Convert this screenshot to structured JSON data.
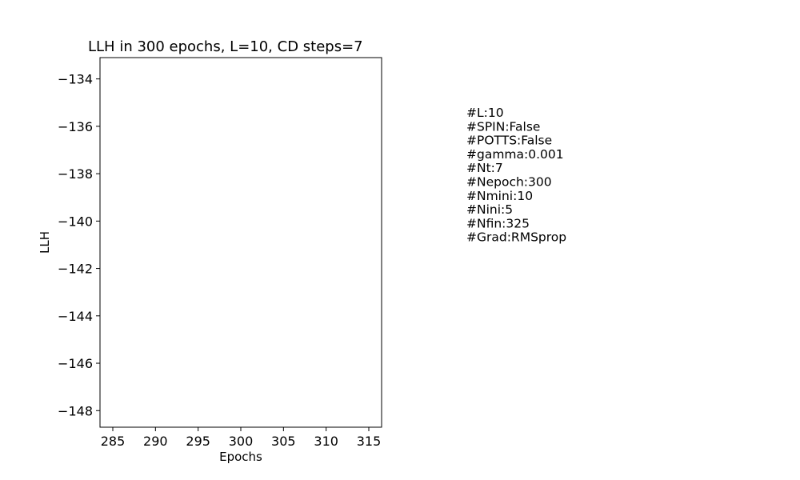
{
  "chart_data": {
    "type": "line",
    "title": "LLH in 300 epochs, L=10, CD steps=7",
    "xlabel": "Epochs",
    "ylabel": "LLH",
    "xlim": [
      283.5,
      316.5
    ],
    "ylim": [
      -148.7,
      -133.1
    ],
    "xticks": [
      285,
      290,
      295,
      300,
      305,
      310,
      315
    ],
    "yticks": [
      -134,
      -136,
      -138,
      -140,
      -142,
      -144,
      -146,
      -148
    ],
    "series": [],
    "grid": false
  },
  "info_lines": [
    "#L:10",
    "#SPIN:False",
    "#POTTS:False",
    "#gamma:0.001",
    "#Nt:7",
    "#Nepoch:300",
    "#Nmini:10",
    "#Nini:5",
    "#Nfin:325",
    "#Grad:RMSprop"
  ]
}
